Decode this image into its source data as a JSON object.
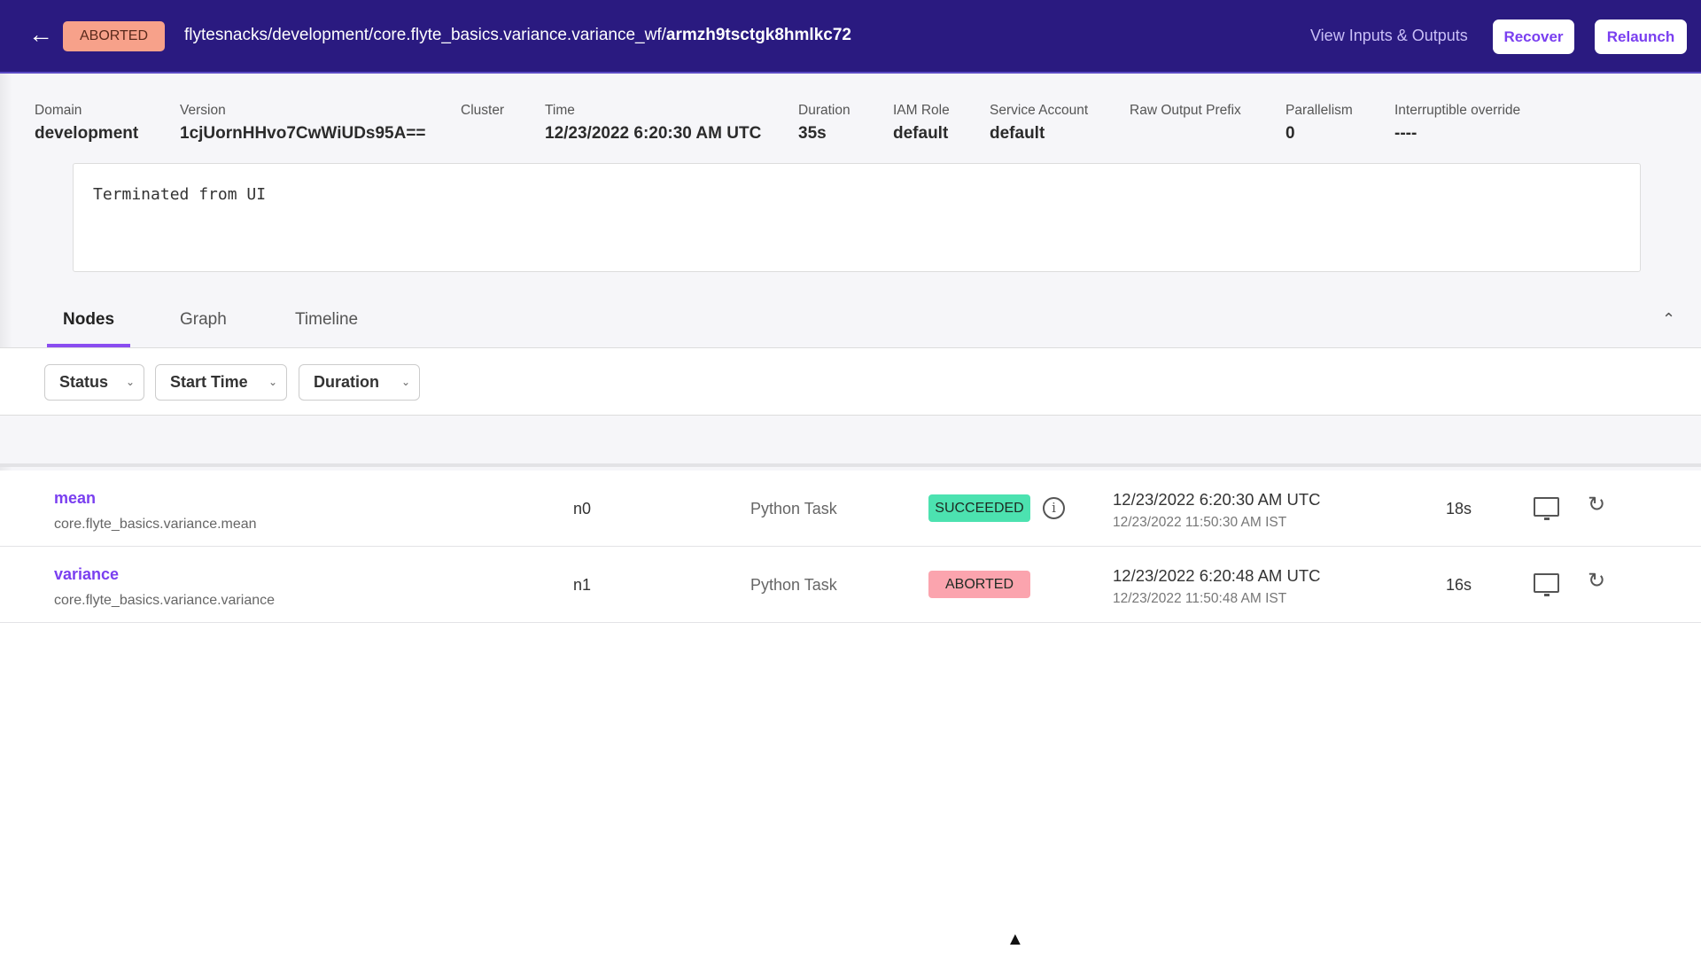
{
  "header": {
    "back_icon": "arrow-left-icon",
    "status": "ABORTED",
    "status_color": "#f7a18a",
    "path_prefix": "flytesnacks/development/core.flyte_basics.variance.variance_wf/",
    "execution_id": "armzh9tsctgk8hmlkc72",
    "view_io": "View Inputs & Outputs",
    "recover": "Recover",
    "relaunch": "Relaunch",
    "bg_color": "#2a1a80"
  },
  "meta": [
    {
      "label": "Domain",
      "value": "development"
    },
    {
      "label": "Version",
      "value": "1cjUornHHvo7CwWiUDs95A=="
    },
    {
      "label": "Cluster",
      "value": ""
    },
    {
      "label": "Time",
      "value": "12/23/2022 6:20:30 AM UTC"
    },
    {
      "label": "Duration",
      "value": "35s"
    },
    {
      "label": "IAM Role",
      "value": "default"
    },
    {
      "label": "Service Account",
      "value": "default"
    },
    {
      "label": "Raw Output Prefix",
      "value": ""
    },
    {
      "label": "Parallelism",
      "value": "0"
    },
    {
      "label": "Interruptible override",
      "value": "----"
    }
  ],
  "error_message": "Terminated from UI",
  "tabs": [
    {
      "label": "Nodes",
      "active": true
    },
    {
      "label": "Graph"
    },
    {
      "label": "Timeline"
    }
  ],
  "filters": [
    "Status",
    "Start Time",
    "Duration"
  ],
  "rows": [
    {
      "name": "mean",
      "task": "core.flyte_basics.variance.mean",
      "id": "n0",
      "type": "Python Task",
      "status": "SUCCEEDED",
      "status_color": "#4ce2b0",
      "start_utc": "12/23/2022 6:20:30 AM UTC",
      "start_local": "12/23/2022 11:50:30 AM IST",
      "duration": "18s"
    },
    {
      "name": "variance",
      "task": "core.flyte_basics.variance.variance",
      "id": "n1",
      "type": "Python Task",
      "status": "ABORTED",
      "status_color": "#fba4ae",
      "start_utc": "12/23/2022 6:20:48 AM UTC",
      "start_local": "12/23/2022 11:50:48 AM IST",
      "duration": "16s"
    }
  ]
}
